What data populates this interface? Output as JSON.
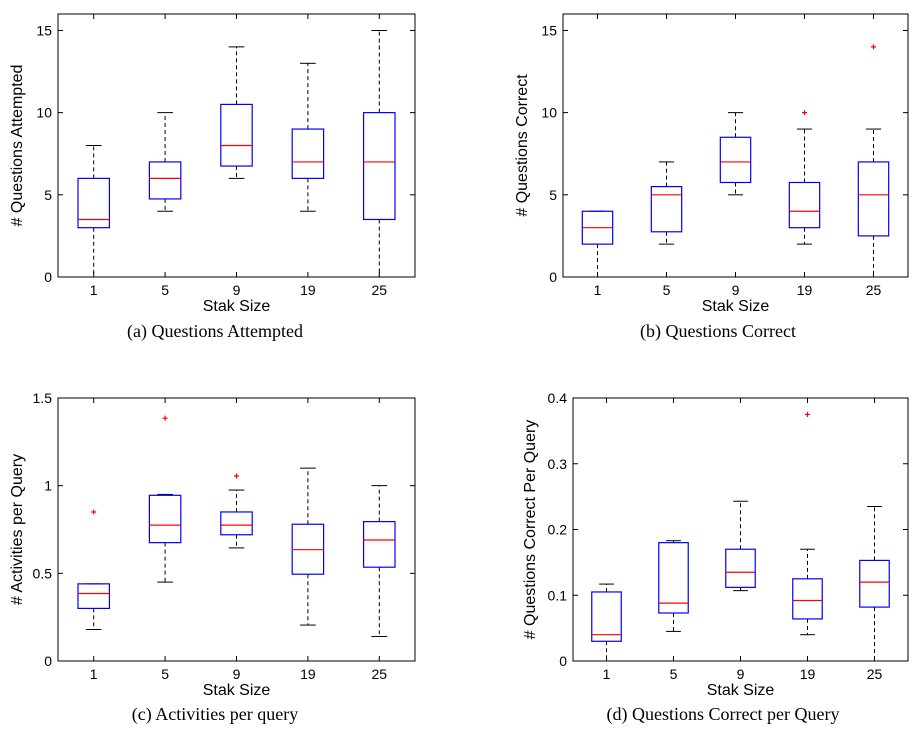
{
  "chart_data": [
    {
      "type": "box",
      "caption": "(a)  Questions Attempted",
      "xlabel": "Stak Size",
      "ylabel": "# Questions Attempted",
      "categories": [
        "1",
        "5",
        "9",
        "19",
        "25"
      ],
      "ylim": [
        0,
        16
      ],
      "yticks": [
        0,
        5,
        10,
        15
      ],
      "ytick_labels": [
        "0",
        "5",
        "10",
        "15"
      ],
      "boxes": [
        {
          "min": 0,
          "q1": 3.0,
          "median": 3.5,
          "q3": 6.0,
          "max": 8,
          "outliers": []
        },
        {
          "min": 4,
          "q1": 4.75,
          "median": 6.0,
          "q3": 7.0,
          "max": 10,
          "outliers": []
        },
        {
          "min": 6,
          "q1": 6.75,
          "median": 8.0,
          "q3": 10.5,
          "max": 14,
          "outliers": []
        },
        {
          "min": 4,
          "q1": 6.0,
          "median": 7.0,
          "q3": 9.0,
          "max": 13,
          "outliers": []
        },
        {
          "min": 0,
          "q1": 3.5,
          "median": 7.0,
          "q3": 10.0,
          "max": 15,
          "outliers": []
        }
      ]
    },
    {
      "type": "box",
      "caption": "(b)  Questions Correct",
      "xlabel": "Stak Size",
      "ylabel": "# Questions Correct",
      "categories": [
        "1",
        "5",
        "9",
        "19",
        "25"
      ],
      "ylim": [
        0,
        16
      ],
      "yticks": [
        0,
        5,
        10,
        15
      ],
      "ytick_labels": [
        "0",
        "5",
        "10",
        "15"
      ],
      "boxes": [
        {
          "min": 0,
          "q1": 2.0,
          "median": 3.0,
          "q3": 4.0,
          "max": 4,
          "outliers": []
        },
        {
          "min": 2,
          "q1": 2.75,
          "median": 5.0,
          "q3": 5.5,
          "max": 7,
          "outliers": []
        },
        {
          "min": 5,
          "q1": 5.75,
          "median": 7.0,
          "q3": 8.5,
          "max": 10,
          "outliers": []
        },
        {
          "min": 2,
          "q1": 3.0,
          "median": 4.0,
          "q3": 5.75,
          "max": 9,
          "outliers": [
            10
          ]
        },
        {
          "min": 0,
          "q1": 2.5,
          "median": 5.0,
          "q3": 7.0,
          "max": 9,
          "outliers": [
            14
          ]
        }
      ]
    },
    {
      "type": "box",
      "caption": "(c)  Activities per query",
      "xlabel": "Stak Size",
      "ylabel": "# Activities per Query",
      "categories": [
        "1",
        "5",
        "9",
        "19",
        "25"
      ],
      "ylim": [
        0,
        1.5
      ],
      "yticks": [
        0,
        0.5,
        1,
        1.5
      ],
      "ytick_labels": [
        "0",
        "0.5",
        "1",
        "1.5"
      ],
      "boxes": [
        {
          "min": 0.18,
          "q1": 0.3,
          "median": 0.385,
          "q3": 0.44,
          "max": 0.44,
          "outliers": [
            0.85
          ]
        },
        {
          "min": 0.45,
          "q1": 0.675,
          "median": 0.775,
          "q3": 0.945,
          "max": 0.95,
          "outliers": [
            1.385
          ]
        },
        {
          "min": 0.645,
          "q1": 0.72,
          "median": 0.775,
          "q3": 0.85,
          "max": 0.975,
          "outliers": [
            1.055
          ]
        },
        {
          "min": 0.205,
          "q1": 0.495,
          "median": 0.635,
          "q3": 0.78,
          "max": 1.1,
          "outliers": []
        },
        {
          "min": 0.14,
          "q1": 0.535,
          "median": 0.69,
          "q3": 0.795,
          "max": 1.0,
          "outliers": []
        }
      ]
    },
    {
      "type": "box",
      "caption": "(d)  Questions Correct per Query",
      "xlabel": "Stak Size",
      "ylabel": "# Questions Correct Per Query",
      "categories": [
        "1",
        "5",
        "9",
        "19",
        "25"
      ],
      "ylim": [
        0,
        0.4
      ],
      "yticks": [
        0,
        0.1,
        0.2,
        0.3,
        0.4
      ],
      "ytick_labels": [
        "0",
        "0.1",
        "0.2",
        "0.3",
        "0.4"
      ],
      "boxes": [
        {
          "min": 0,
          "q1": 0.03,
          "median": 0.04,
          "q3": 0.105,
          "max": 0.117,
          "outliers": []
        },
        {
          "min": 0.045,
          "q1": 0.073,
          "median": 0.088,
          "q3": 0.18,
          "max": 0.183,
          "outliers": []
        },
        {
          "min": 0.107,
          "q1": 0.112,
          "median": 0.135,
          "q3": 0.17,
          "max": 0.243,
          "outliers": []
        },
        {
          "min": 0.04,
          "q1": 0.064,
          "median": 0.092,
          "q3": 0.125,
          "max": 0.17,
          "outliers": [
            0.375
          ]
        },
        {
          "min": 0,
          "q1": 0.082,
          "median": 0.12,
          "q3": 0.153,
          "max": 0.235,
          "outliers": []
        }
      ]
    }
  ]
}
